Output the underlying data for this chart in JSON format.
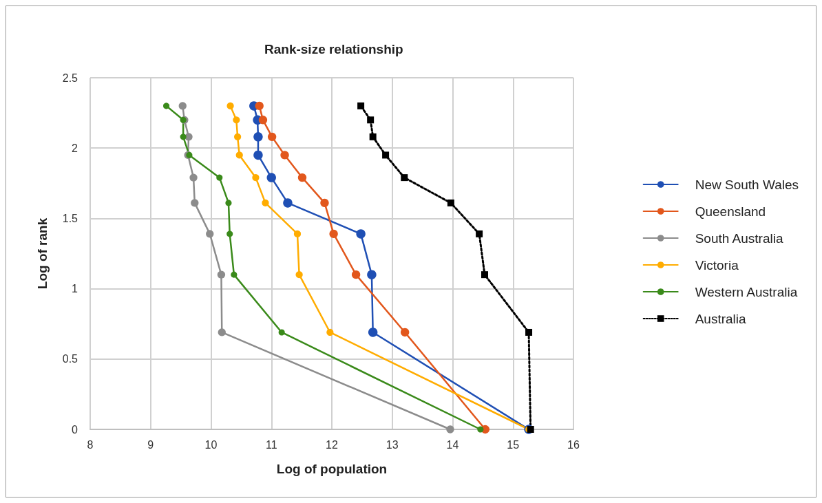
{
  "chart_data": {
    "type": "line",
    "title": "Rank-size relationship",
    "xlabel": "Log of population",
    "ylabel": "Log of rank",
    "xlim": [
      8,
      16
    ],
    "xticks": [
      8,
      9,
      10,
      11,
      12,
      13,
      14,
      15,
      16
    ],
    "ylim": [
      0,
      2.5
    ],
    "yticks": [
      0,
      0.5,
      1,
      1.5,
      2,
      2.5
    ],
    "grid": true,
    "legend": "right",
    "marker": "circle",
    "line_style": "solid",
    "series": [
      {
        "name": "New South Wales",
        "color": "#1f4fb4",
        "x": [
          15.26,
          12.68,
          12.66,
          12.48,
          11.27,
          11.0,
          10.78,
          10.78,
          10.77,
          10.71
        ],
        "values": [
          0,
          0.69,
          1.1,
          1.39,
          1.61,
          1.79,
          1.95,
          2.08,
          2.2,
          2.3
        ]
      },
      {
        "name": "Queensland",
        "color": "#e2571c",
        "x": [
          14.54,
          13.21,
          12.4,
          12.03,
          11.88,
          11.51,
          11.22,
          11.01,
          10.86,
          10.8
        ],
        "values": [
          0,
          0.69,
          1.1,
          1.39,
          1.61,
          1.79,
          1.95,
          2.08,
          2.2,
          2.3
        ]
      },
      {
        "name": "South Australia",
        "color": "#8c8c8c",
        "x": [
          13.96,
          10.18,
          10.17,
          9.98,
          9.73,
          9.71,
          9.62,
          9.63,
          9.56,
          9.53
        ],
        "values": [
          0,
          0.69,
          1.1,
          1.39,
          1.61,
          1.79,
          1.95,
          2.08,
          2.2,
          2.3
        ]
      },
      {
        "name": "Victoria",
        "color": "#ffac00",
        "x": [
          15.26,
          11.97,
          11.46,
          11.43,
          10.9,
          10.74,
          10.47,
          10.44,
          10.42,
          10.32
        ],
        "values": [
          0,
          0.69,
          1.1,
          1.39,
          1.61,
          1.79,
          1.95,
          2.08,
          2.2,
          2.3
        ]
      },
      {
        "name": "Western Australia",
        "color": "#3a8a1a",
        "x": [
          14.46,
          11.17,
          10.38,
          10.31,
          10.29,
          10.14,
          9.64,
          9.54,
          9.54,
          9.26
        ],
        "values": [
          0,
          0.69,
          1.1,
          1.39,
          1.61,
          1.79,
          1.95,
          2.08,
          2.2,
          2.3
        ]
      },
      {
        "name": "Australia",
        "color": "#000000",
        "marker": "square",
        "line_style": "dotted",
        "x": [
          15.29,
          15.26,
          14.53,
          14.44,
          13.97,
          13.2,
          12.89,
          12.68,
          12.64,
          12.48
        ],
        "values": [
          0,
          0.69,
          1.1,
          1.39,
          1.61,
          1.79,
          1.95,
          2.08,
          2.2,
          2.3
        ]
      }
    ]
  }
}
